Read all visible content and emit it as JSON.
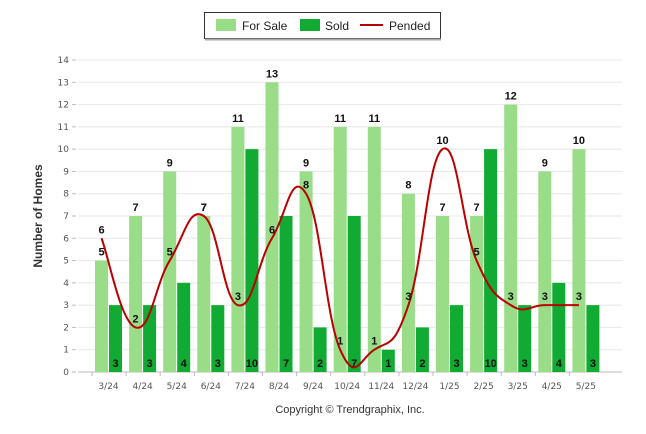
{
  "chart_data": {
    "type": "bar",
    "categories": [
      "3/24",
      "4/24",
      "5/24",
      "6/24",
      "7/24",
      "8/24",
      "9/24",
      "10/24",
      "11/24",
      "12/24",
      "1/25",
      "2/25",
      "3/25",
      "4/25",
      "5/25"
    ],
    "series": [
      {
        "name": "For Sale",
        "type": "bar",
        "color": "#99dd88",
        "values": [
          5,
          7,
          9,
          7,
          11,
          13,
          9,
          11,
          11,
          8,
          7,
          7,
          12,
          9,
          10
        ]
      },
      {
        "name": "Sold",
        "type": "bar",
        "color": "#11aa33",
        "values": [
          3,
          3,
          4,
          3,
          10,
          7,
          2,
          7,
          1,
          2,
          3,
          10,
          3,
          4,
          3
        ]
      },
      {
        "name": "Pended",
        "type": "line",
        "color": "#bb0000",
        "values": [
          6,
          2,
          5,
          7,
          3,
          6,
          8,
          1,
          1,
          3,
          10,
          5,
          3,
          3,
          3
        ]
      }
    ],
    "ylabel": "Number of Homes",
    "xlabel": "",
    "ylim": [
      0,
      14
    ],
    "yticks": [
      0,
      1,
      2,
      3,
      4,
      5,
      6,
      7,
      8,
      9,
      10,
      11,
      12,
      13,
      14
    ],
    "grid": true,
    "legend": "top-center"
  },
  "credit": "Copyright © Trendgraphix, Inc."
}
